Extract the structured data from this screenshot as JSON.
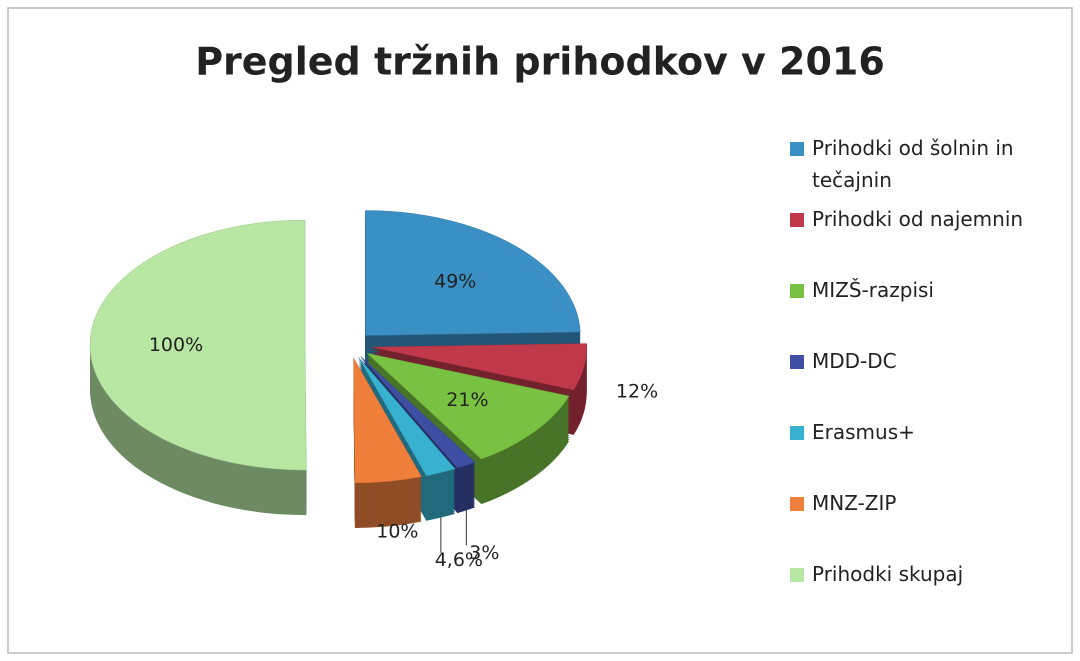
{
  "chart_data": {
    "type": "pie",
    "title": "Pregled tržnih prihodkov v 2016",
    "categories": [
      "Prihodki od šolnin in tečajnin",
      "Prihodki od najemnin",
      "MIZŠ-razpisi",
      "MDD-DC",
      "Erasmus+",
      "MNZ-ZIP",
      "Prihodki skupaj"
    ],
    "values": [
      49,
      12,
      21,
      3,
      4.6,
      10,
      100
    ],
    "value_labels": [
      "49%",
      "12%",
      "21%",
      "3%",
      "4,6%",
      "10%",
      "100%"
    ],
    "colors": [
      "#3a8fc4",
      "#c0394b",
      "#79c142",
      "#3d4ea3",
      "#37b1cf",
      "#f07f3c",
      "#b8e6a3"
    ],
    "legend": "right"
  }
}
